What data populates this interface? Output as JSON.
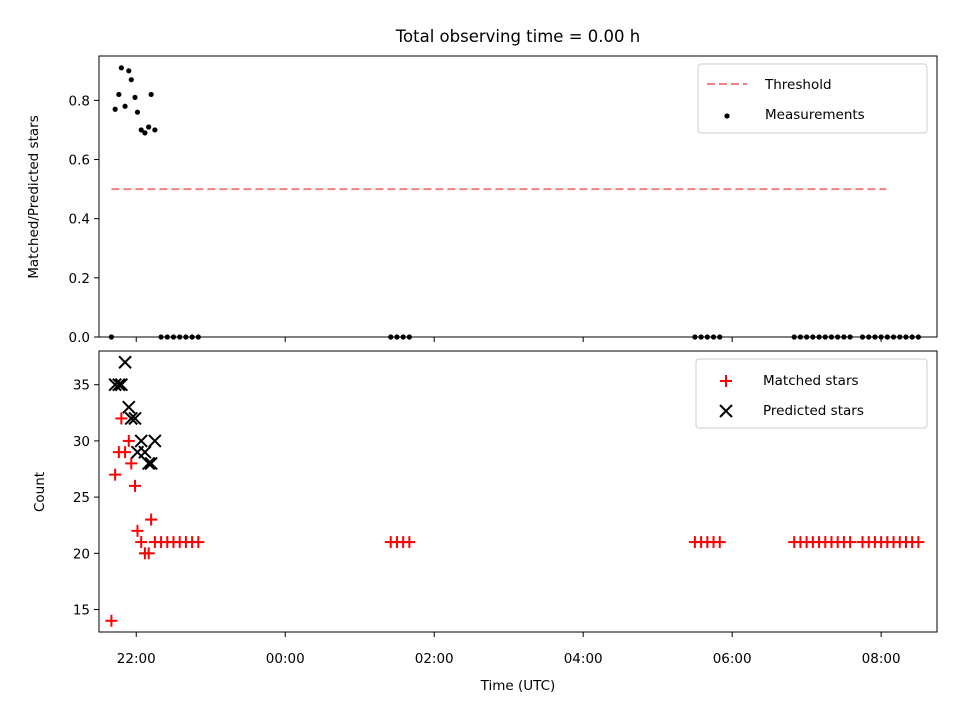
{
  "chart_data": [
    {
      "type": "scatter",
      "title": "Total observing time = 0.00 h",
      "ylabel": "Matched/Predicted stars",
      "xlabel": "",
      "xlim": [
        "21:30",
        "08:45"
      ],
      "ylim": [
        0,
        0.95
      ],
      "yticks": [
        "0.0",
        "0.2",
        "0.4",
        "0.6",
        "0.8"
      ],
      "ytick_values": [
        0,
        0.2,
        0.4,
        0.6,
        0.8
      ],
      "grid": false,
      "legend_position": "upper-right",
      "colors": {
        "threshold": "#f08080",
        "measurements": "#000000"
      },
      "threshold": {
        "name": "Threshold",
        "y": 0.5,
        "x_start": "21:40",
        "x_end": "08:04"
      },
      "series": [
        {
          "name": "Measurements",
          "points": [
            [
              "21:40",
              0.0
            ],
            [
              "21:43",
              0.77
            ],
            [
              "21:46",
              0.82
            ],
            [
              "21:48",
              0.91
            ],
            [
              "21:51",
              0.78
            ],
            [
              "21:54",
              0.9
            ],
            [
              "21:56",
              0.87
            ],
            [
              "21:59",
              0.81
            ],
            [
              "22:01",
              0.76
            ],
            [
              "22:04",
              0.7
            ],
            [
              "22:07",
              0.69
            ],
            [
              "22:10",
              0.71
            ],
            [
              "22:12",
              0.82
            ],
            [
              "22:15",
              0.7
            ],
            [
              "22:20",
              0.0
            ],
            [
              "22:25",
              0.0
            ],
            [
              "22:30",
              0.0
            ],
            [
              "22:35",
              0.0
            ],
            [
              "22:40",
              0.0
            ],
            [
              "22:45",
              0.0
            ],
            [
              "22:50",
              0.0
            ],
            [
              "01:25",
              0.0
            ],
            [
              "01:30",
              0.0
            ],
            [
              "01:35",
              0.0
            ],
            [
              "01:40",
              0.0
            ],
            [
              "05:30",
              0.0
            ],
            [
              "05:35",
              0.0
            ],
            [
              "05:40",
              0.0
            ],
            [
              "05:45",
              0.0
            ],
            [
              "05:50",
              0.0
            ],
            [
              "06:50",
              0.0
            ],
            [
              "06:55",
              0.0
            ],
            [
              "07:00",
              0.0
            ],
            [
              "07:05",
              0.0
            ],
            [
              "07:10",
              0.0
            ],
            [
              "07:15",
              0.0
            ],
            [
              "07:20",
              0.0
            ],
            [
              "07:25",
              0.0
            ],
            [
              "07:30",
              0.0
            ],
            [
              "07:35",
              0.0
            ],
            [
              "07:45",
              0.0
            ],
            [
              "07:50",
              0.0
            ],
            [
              "07:55",
              0.0
            ],
            [
              "08:00",
              0.0
            ],
            [
              "08:05",
              0.0
            ],
            [
              "08:10",
              0.0
            ],
            [
              "08:15",
              0.0
            ],
            [
              "08:20",
              0.0
            ],
            [
              "08:25",
              0.0
            ],
            [
              "08:30",
              0.0
            ]
          ]
        }
      ]
    },
    {
      "type": "scatter",
      "title": "",
      "ylabel": "Count",
      "xlabel": "Time (UTC)",
      "xlim": [
        "21:30",
        "08:45"
      ],
      "ylim": [
        13,
        38
      ],
      "yticks": [
        "15",
        "20",
        "25",
        "30",
        "35"
      ],
      "ytick_values": [
        15,
        20,
        25,
        30,
        35
      ],
      "xticks": [
        "22:00",
        "00:00",
        "02:00",
        "04:00",
        "06:00",
        "08:00"
      ],
      "xtick_values": [
        "22:00",
        "00:00",
        "02:00",
        "04:00",
        "06:00",
        "08:00"
      ],
      "grid": false,
      "legend_position": "upper-right",
      "colors": {
        "matched": "#ff0000",
        "predicted": "#000000"
      },
      "series": [
        {
          "name": "Matched stars",
          "marker": "plus",
          "points": [
            [
              "21:40",
              14
            ],
            [
              "21:43",
              27
            ],
            [
              "21:46",
              29
            ],
            [
              "21:48",
              32
            ],
            [
              "21:51",
              29
            ],
            [
              "21:54",
              30
            ],
            [
              "21:56",
              28
            ],
            [
              "21:59",
              26
            ],
            [
              "22:01",
              22
            ],
            [
              "22:04",
              21
            ],
            [
              "22:07",
              20
            ],
            [
              "22:10",
              20
            ],
            [
              "22:12",
              23
            ],
            [
              "22:15",
              21
            ],
            [
              "22:20",
              21
            ],
            [
              "22:25",
              21
            ],
            [
              "22:30",
              21
            ],
            [
              "22:35",
              21
            ],
            [
              "22:40",
              21
            ],
            [
              "22:45",
              21
            ],
            [
              "22:50",
              21
            ],
            [
              "01:25",
              21
            ],
            [
              "01:30",
              21
            ],
            [
              "01:35",
              21
            ],
            [
              "01:40",
              21
            ],
            [
              "05:30",
              21
            ],
            [
              "05:35",
              21
            ],
            [
              "05:40",
              21
            ],
            [
              "05:45",
              21
            ],
            [
              "05:50",
              21
            ],
            [
              "06:50",
              21
            ],
            [
              "06:55",
              21
            ],
            [
              "07:00",
              21
            ],
            [
              "07:05",
              21
            ],
            [
              "07:10",
              21
            ],
            [
              "07:15",
              21
            ],
            [
              "07:20",
              21
            ],
            [
              "07:25",
              21
            ],
            [
              "07:30",
              21
            ],
            [
              "07:35",
              21
            ],
            [
              "07:45",
              21
            ],
            [
              "07:50",
              21
            ],
            [
              "07:55",
              21
            ],
            [
              "08:00",
              21
            ],
            [
              "08:05",
              21
            ],
            [
              "08:10",
              21
            ],
            [
              "08:15",
              21
            ],
            [
              "08:20",
              21
            ],
            [
              "08:25",
              21
            ],
            [
              "08:30",
              21
            ]
          ]
        },
        {
          "name": "Predicted stars",
          "marker": "x",
          "points": [
            [
              "21:43",
              35
            ],
            [
              "21:46",
              35
            ],
            [
              "21:48",
              35
            ],
            [
              "21:51",
              37
            ],
            [
              "21:54",
              33
            ],
            [
              "21:56",
              32
            ],
            [
              "21:59",
              32
            ],
            [
              "22:01",
              29
            ],
            [
              "22:04",
              30
            ],
            [
              "22:07",
              29
            ],
            [
              "22:10",
              28
            ],
            [
              "22:12",
              28
            ],
            [
              "22:15",
              30
            ]
          ]
        }
      ]
    }
  ]
}
